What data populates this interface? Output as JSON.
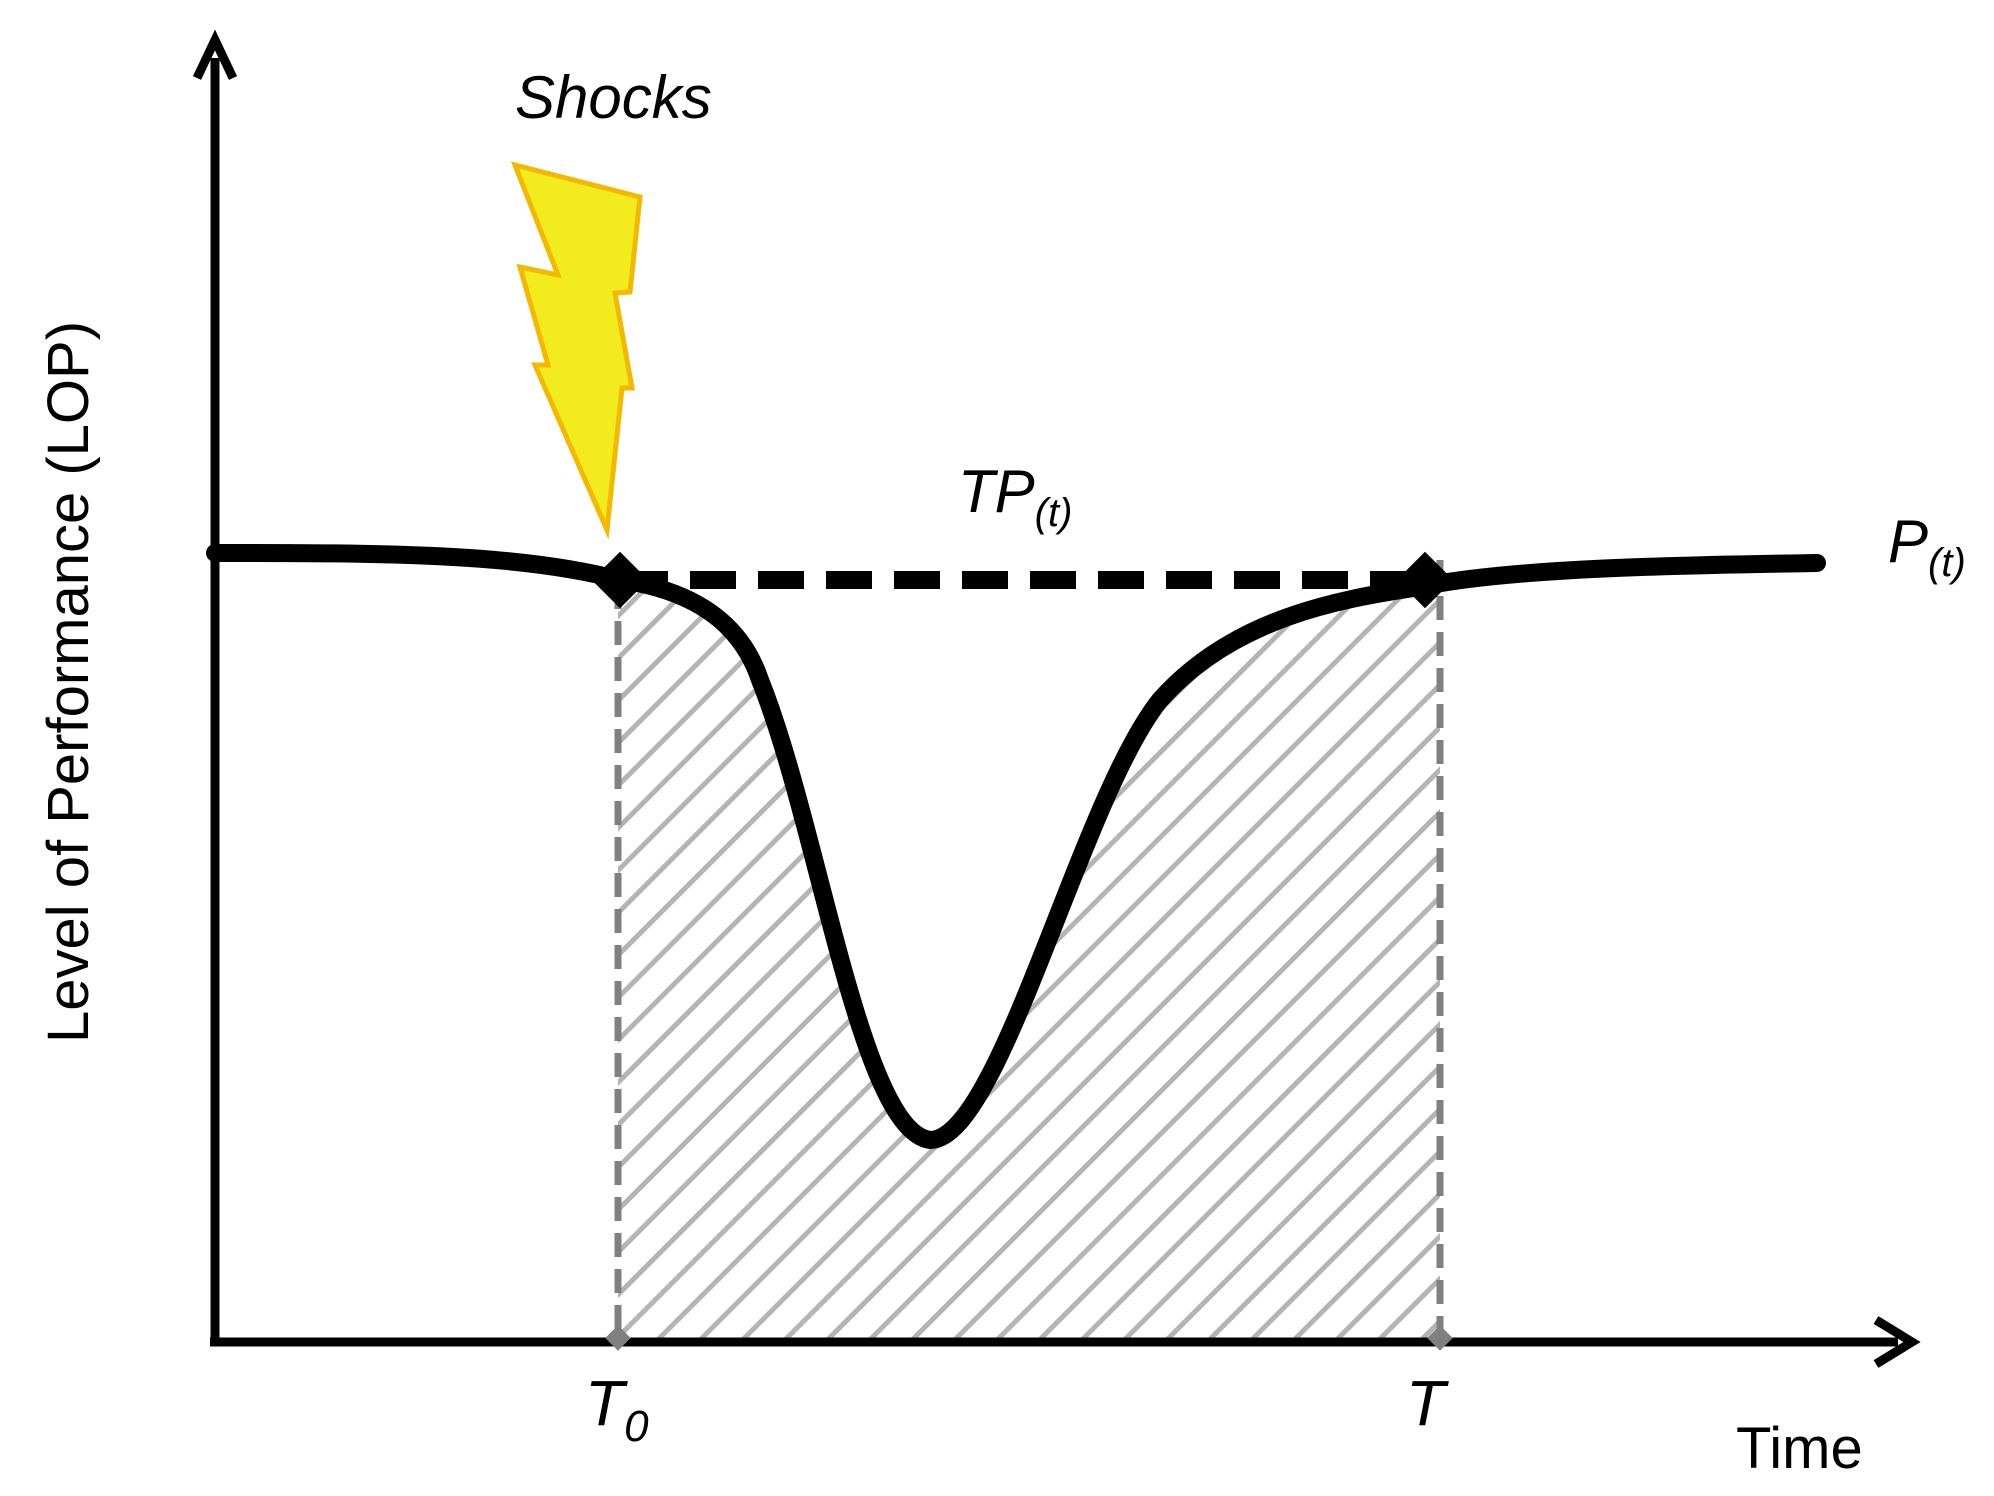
{
  "diagram": {
    "y_axis_label": "Level of Performance (LOP)",
    "x_axis_label": "Time",
    "shock_label": "Shocks",
    "target_label": {
      "base": "TP",
      "sub": "(t)"
    },
    "performance_label": {
      "base": "P",
      "sub": "(t)"
    },
    "t0_label": {
      "base": "T",
      "sub": "0"
    },
    "t_label": "T"
  },
  "colors": {
    "curve": "#000000",
    "axis": "#000000",
    "guide": "#808080",
    "hatch": "#b4b4b4",
    "bolt_fill": "#f2ec1e",
    "bolt_stroke": "#f5b800"
  }
}
